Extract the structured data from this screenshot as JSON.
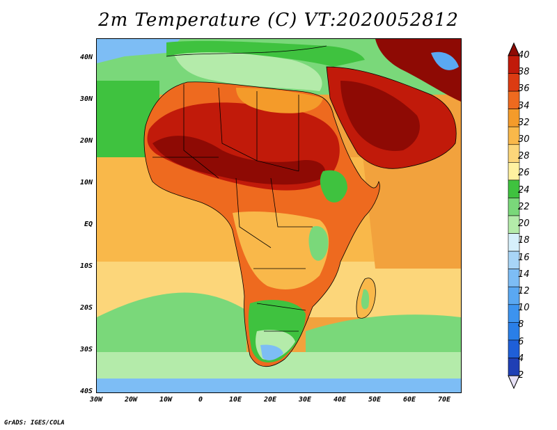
{
  "title": "2m Temperature (C) VT:2020052812",
  "footer": "GrADS: IGES/COLA",
  "lat_labels": [
    "40N",
    "30N",
    "20N",
    "10N",
    "EQ",
    "10S",
    "20S",
    "30S",
    "40S"
  ],
  "lon_labels": [
    "30W",
    "20W",
    "10W",
    "0",
    "10E",
    "20E",
    "30E",
    "40E",
    "50E",
    "60E",
    "70E"
  ],
  "colorbar": {
    "levels": [
      "2",
      "4",
      "6",
      "8",
      "10",
      "12",
      "14",
      "16",
      "18",
      "20",
      "22",
      "24",
      "26",
      "28",
      "30",
      "32",
      "34",
      "36",
      "38",
      "40"
    ],
    "colors": [
      "#1a1a7a",
      "#1f3fb5",
      "#1f5fd8",
      "#2a7fe8",
      "#3c93ef",
      "#5aa8f2",
      "#7dbdf5",
      "#a8d5f7",
      "#d6f0fb",
      "#b4ebaa",
      "#7ad87a",
      "#3fc23f",
      "#fff1a0",
      "#fcd67a",
      "#f9b84a",
      "#f49b2a",
      "#ee6a1f",
      "#dc3b12",
      "#c11a0a",
      "#8e0a04"
    ]
  },
  "map_colors": {
    "ocean_warm": "#f2a23d",
    "ocean_mid": "#fcd67a",
    "ocean_cool": "#7ad87a",
    "ocean_cold": "#b4ebaa",
    "ocean_vcold": "#5aa8f2",
    "land_hot": "#c11a0a",
    "land_vhot": "#8e0a04",
    "land_warm": "#ee6a1f",
    "land_mild": "#f9b84a",
    "land_cool": "#3fc23f",
    "med": "#b4ebaa"
  }
}
